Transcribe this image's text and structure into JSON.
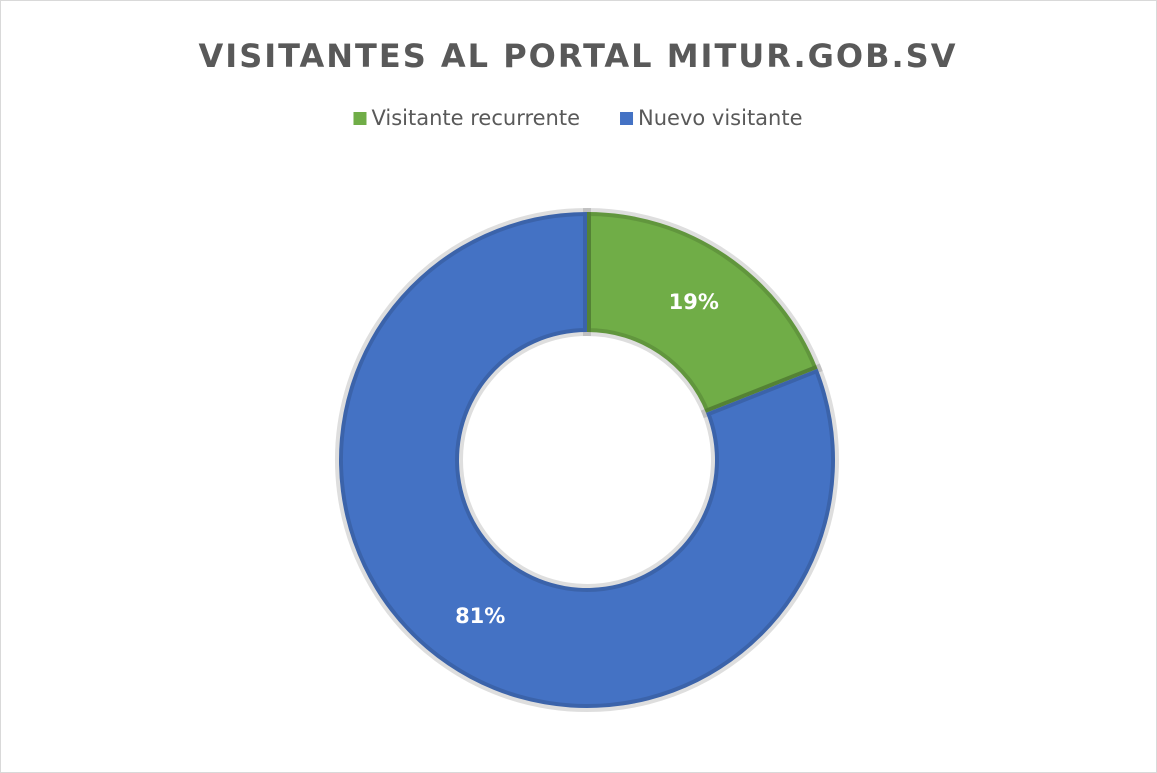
{
  "chart_data": {
    "type": "doughnut",
    "title": "VISITANTES AL PORTAL MITUR.GOB.SV",
    "categories": [
      "Visitante recurrente",
      "Nuevo visitante"
    ],
    "values": [
      19,
      81
    ],
    "value_labels": [
      "19%",
      "81%"
    ],
    "colors": [
      "#70ad47",
      "#4472c4"
    ],
    "legend": "top"
  }
}
